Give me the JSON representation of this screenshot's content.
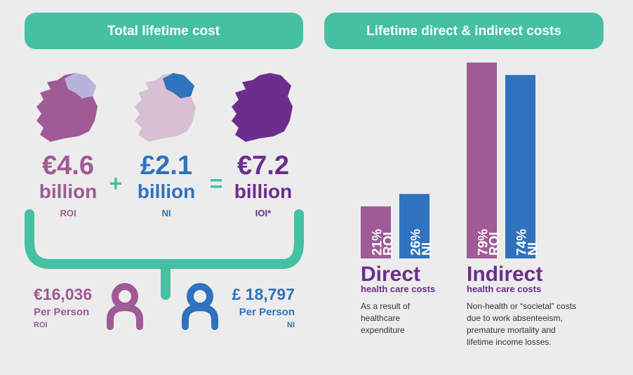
{
  "left": {
    "title": "Total lifetime cost",
    "items": [
      {
        "amount": "€4.6",
        "unit": "billion",
        "region": "ROI"
      },
      {
        "amount": "£2.1",
        "unit": "billion",
        "region": "NI"
      },
      {
        "amount": "€7.2",
        "unit": "billion",
        "region": "IOI*"
      }
    ],
    "plus": "+",
    "equals": "=",
    "per_person": [
      {
        "amount": "€16,036",
        "label": "Per Person",
        "region": "ROI"
      },
      {
        "amount": "£ 18,797",
        "label": "Per Person",
        "region": "NI"
      }
    ]
  },
  "chart_data": {
    "type": "bar",
    "title": "Lifetime direct & indirect costs",
    "categories": [
      "Direct",
      "Indirect"
    ],
    "subtitles": [
      "health care costs",
      "health care costs"
    ],
    "descriptions": [
      "As a result of healthcare expenditure",
      "Non-health or “societal” costs due to work absenteeism, premature mortality and lifetime income losses."
    ],
    "series": [
      {
        "name": "ROI",
        "color": "#a05a96",
        "values": [
          21,
          79
        ],
        "value_labels": [
          "21%",
          "79%"
        ]
      },
      {
        "name": "NI",
        "color": "#2f72bd",
        "values": [
          26,
          74
        ],
        "value_labels": [
          "26%",
          "74%"
        ]
      }
    ]
  }
}
